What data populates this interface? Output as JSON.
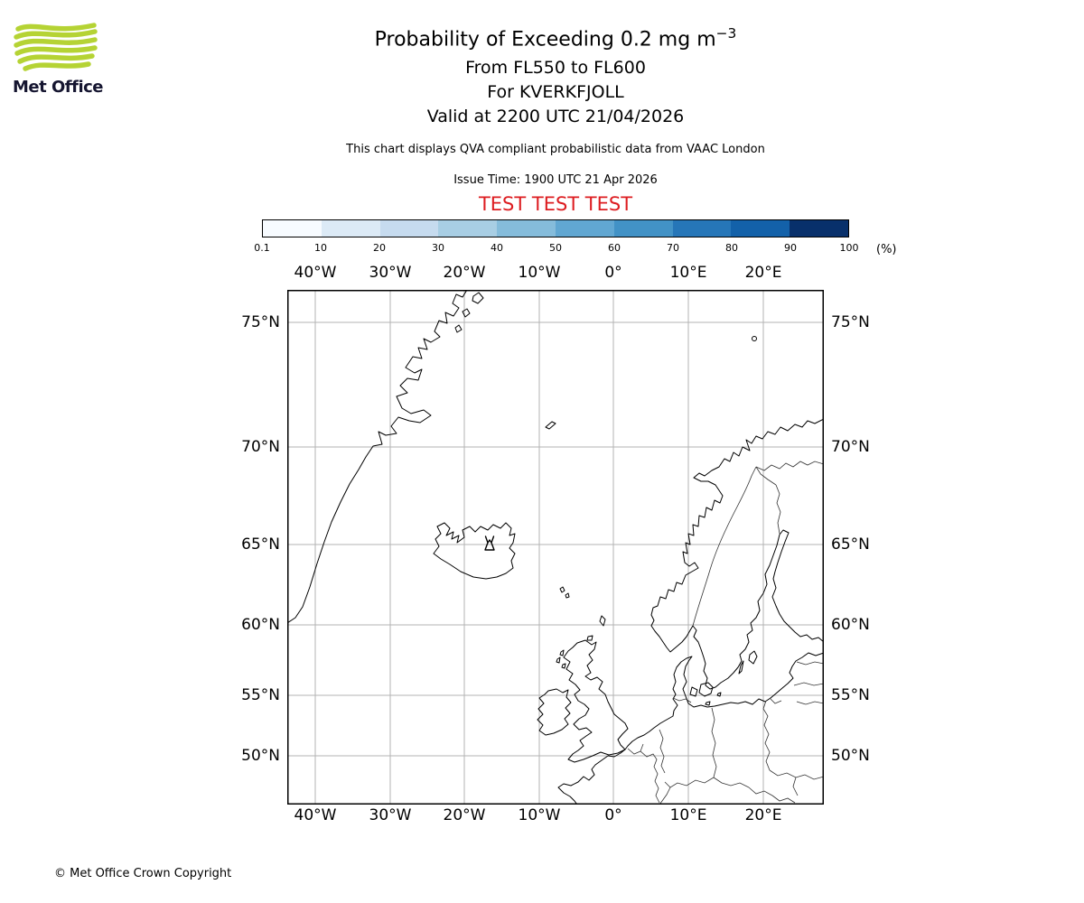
{
  "logo": {
    "label": "Met Office"
  },
  "header": {
    "title": "Probability of Exceeding 0.2 mg m",
    "title_superscript": "−3",
    "line1": "From FL550 to FL600",
    "line2": "For KVERKFJOLL",
    "line3": "Valid at 2200 UTC 21/04/2026",
    "description": "This chart displays QVA compliant probabilistic data from VAAC London",
    "issue_time": "Issue Time: 1900 UTC 21 Apr 2026",
    "test_banner": "TEST TEST TEST"
  },
  "colorbar": {
    "unit": "(%)",
    "ticks": [
      "0.1",
      "10",
      "20",
      "30",
      "40",
      "50",
      "60",
      "70",
      "80",
      "90",
      "100"
    ],
    "colors": [
      "#f7fbff",
      "#dceaf6",
      "#c6dbef",
      "#a8cee4",
      "#85bcdb",
      "#61a7d2",
      "#4292c6",
      "#2676b8",
      "#1361a9",
      "#08306b"
    ]
  },
  "map": {
    "lon_labels": [
      "40°W",
      "30°W",
      "20°W",
      "10°W",
      "0°",
      "10°E",
      "20°E"
    ],
    "lat_labels": [
      "75°N",
      "70°N",
      "65°N",
      "60°N",
      "55°N",
      "50°N"
    ],
    "volcano_icon": "volcano-symbol",
    "volcano_name": "KVERKFJOLL"
  },
  "footer": {
    "copyright": "© Met Office Crown Copyright"
  },
  "colors": {
    "test_red": "#dd1d21",
    "logo_green": "#b5d334",
    "grid_gray": "#b3b3b3"
  }
}
